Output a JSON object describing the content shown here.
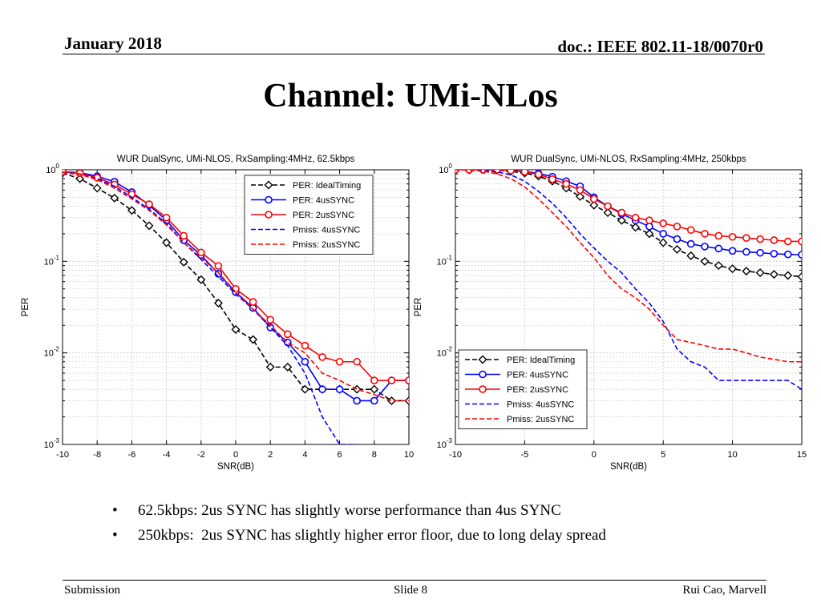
{
  "header": {
    "date": "January 2018",
    "doc": "doc.: IEEE 802.11-18/0070r0"
  },
  "title": "Channel: UMi-NLos",
  "bullets": [
    "62.5kbps: 2us SYNC has slightly worse performance than 4us SYNC",
    "250kbps:  2us SYNC has slightly higher error floor, due to long delay spread"
  ],
  "footer": {
    "left": "Submission",
    "center": "Slide 8",
    "right": "Rui Cao, Marvell"
  },
  "colors": {
    "black": "#000000",
    "blue": "#0000ff",
    "red": "#ff0000",
    "grid": "#c8c8c8"
  },
  "chart_data": [
    {
      "type": "line",
      "title": "WUR DualSync, UMi-NLOS, RxSampling:4MHz, 62.5kbps",
      "xlabel": "SNR(dB)",
      "ylabel": "PER",
      "yscale": "log",
      "xlim": [
        -10,
        10
      ],
      "ylim": [
        0.001,
        1
      ],
      "xticks": [
        -10,
        -8,
        -6,
        -4,
        -2,
        0,
        2,
        4,
        6,
        8,
        10
      ],
      "legend_position": "top-right",
      "x": [
        -10,
        -9,
        -8,
        -7,
        -6,
        -5,
        -4,
        -3,
        -2,
        -1,
        0,
        1,
        2,
        3,
        4,
        5,
        6,
        7,
        8,
        9,
        10
      ],
      "series": [
        {
          "name": "PER: IdealTiming",
          "color": "black",
          "style": "dashed",
          "marker": "diamond",
          "values": [
            0.92,
            0.8,
            0.63,
            0.49,
            0.36,
            0.245,
            0.16,
            0.098,
            0.063,
            0.035,
            0.018,
            0.014,
            0.007,
            0.007,
            0.004,
            0.004,
            0.004,
            0.004,
            0.004,
            0.003,
            0.003
          ]
        },
        {
          "name": "PER: 4usSYNC",
          "color": "blue",
          "style": "solid",
          "marker": "circle",
          "values": [
            0.95,
            0.93,
            0.85,
            0.74,
            0.57,
            0.41,
            0.28,
            0.17,
            0.117,
            0.073,
            0.046,
            0.031,
            0.019,
            0.013,
            0.008,
            0.004,
            0.004,
            0.003,
            0.003,
            0.005,
            0.005
          ]
        },
        {
          "name": "PER: 2usSYNC",
          "color": "red",
          "style": "solid",
          "marker": "circle",
          "values": [
            0.95,
            0.92,
            0.82,
            0.69,
            0.54,
            0.42,
            0.3,
            0.19,
            0.125,
            0.089,
            0.05,
            0.036,
            0.023,
            0.016,
            0.012,
            0.009,
            0.008,
            0.008,
            0.005,
            0.005,
            0.005
          ]
        },
        {
          "name": "Pmiss: 4usSYNC",
          "color": "blue",
          "style": "dashed",
          "marker": "none",
          "values": [
            0.94,
            0.9,
            0.8,
            0.66,
            0.5,
            0.37,
            0.26,
            0.16,
            0.105,
            0.068,
            0.044,
            0.03,
            0.019,
            0.012,
            0.006,
            0.002,
            0.001,
            0.001,
            null,
            null,
            null
          ]
        },
        {
          "name": "Pmiss: 2usSYNC",
          "color": "red",
          "style": "dashed",
          "marker": "none",
          "values": [
            0.93,
            0.89,
            0.78,
            0.63,
            0.48,
            0.36,
            0.25,
            0.16,
            0.11,
            0.075,
            0.046,
            0.03,
            0.02,
            0.013,
            0.01,
            0.006,
            0.005,
            0.004,
            0.0035,
            0.003,
            0.003
          ]
        }
      ]
    },
    {
      "type": "line",
      "title": "WUR DualSync, UMi-NLOS, RxSampling:4MHz, 250kbps",
      "xlabel": "SNR(dB)",
      "ylabel": "PER",
      "yscale": "log",
      "xlim": [
        -10,
        15
      ],
      "ylim": [
        0.001,
        1
      ],
      "xticks": [
        -10,
        -5,
        0,
        5,
        10,
        15
      ],
      "legend_position": "bottom-center",
      "x": [
        -10,
        -9,
        -8,
        -7,
        -6,
        -5,
        -4,
        -3,
        -2,
        -1,
        0,
        1,
        2,
        3,
        4,
        5,
        6,
        7,
        8,
        9,
        10,
        11,
        12,
        13,
        14,
        15
      ],
      "series": [
        {
          "name": "PER: IdealTiming",
          "color": "black",
          "style": "dashed",
          "marker": "diamond",
          "values": [
            1.0,
            1.0,
            1.0,
            0.99,
            0.96,
            0.92,
            0.85,
            0.75,
            0.63,
            0.51,
            0.41,
            0.34,
            0.28,
            0.235,
            0.2,
            0.16,
            0.135,
            0.115,
            0.1,
            0.09,
            0.083,
            0.078,
            0.075,
            0.072,
            0.07,
            0.068
          ]
        },
        {
          "name": "PER: 4usSYNC",
          "color": "blue",
          "style": "solid",
          "marker": "circle",
          "values": [
            1.0,
            1.0,
            1.0,
            1.0,
            0.98,
            0.96,
            0.91,
            0.84,
            0.75,
            0.66,
            0.5,
            0.4,
            0.33,
            0.28,
            0.24,
            0.2,
            0.175,
            0.155,
            0.145,
            0.138,
            0.13,
            0.127,
            0.124,
            0.121,
            0.119,
            0.118
          ]
        },
        {
          "name": "PER: 2usSYNC",
          "color": "red",
          "style": "solid",
          "marker": "circle",
          "values": [
            1.0,
            1.0,
            1.0,
            1.0,
            0.98,
            0.95,
            0.89,
            0.79,
            0.7,
            0.6,
            0.48,
            0.4,
            0.34,
            0.3,
            0.28,
            0.26,
            0.24,
            0.22,
            0.2,
            0.19,
            0.185,
            0.18,
            0.175,
            0.17,
            0.165,
            0.165
          ]
        },
        {
          "name": "Pmiss: 4usSYNC",
          "color": "blue",
          "style": "dashed",
          "marker": "none",
          "values": [
            1.0,
            1.0,
            0.98,
            0.95,
            0.88,
            0.75,
            0.58,
            0.43,
            0.3,
            0.2,
            0.14,
            0.1,
            0.075,
            0.05,
            0.035,
            0.022,
            0.011,
            0.008,
            0.007,
            0.005,
            0.005,
            0.005,
            0.005,
            0.005,
            0.005,
            0.004
          ]
        },
        {
          "name": "Pmiss: 2usSYNC",
          "color": "red",
          "style": "dashed",
          "marker": "none",
          "values": [
            1.0,
            0.99,
            0.97,
            0.9,
            0.8,
            0.65,
            0.48,
            0.34,
            0.24,
            0.16,
            0.11,
            0.07,
            0.05,
            0.04,
            0.03,
            0.02,
            0.014,
            0.013,
            0.012,
            0.011,
            0.011,
            0.01,
            0.009,
            0.0085,
            0.008,
            0.008
          ]
        }
      ]
    }
  ]
}
